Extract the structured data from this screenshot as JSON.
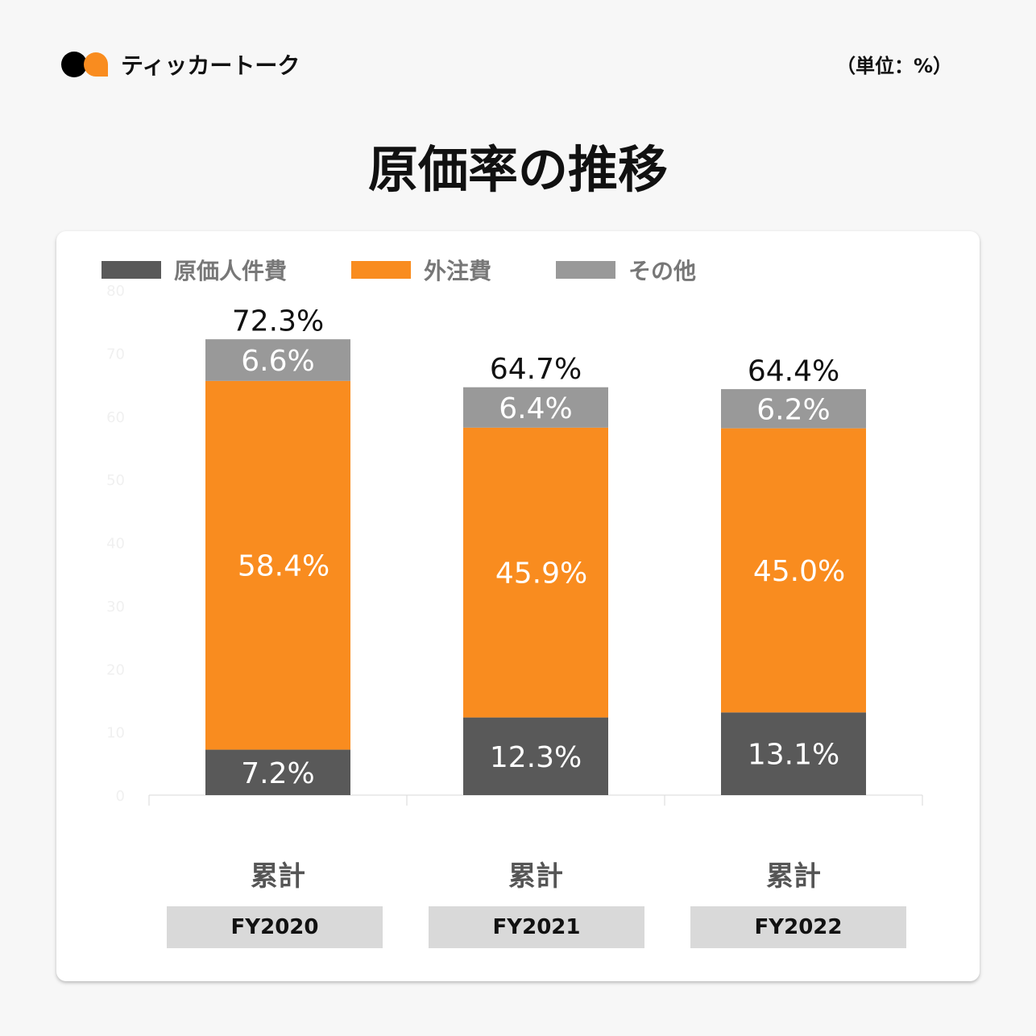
{
  "header": {
    "brand": "ティッカートーク",
    "unit": "（単位：%）",
    "title": "原価率の推移"
  },
  "colors": {
    "labor": "#595959",
    "outsourcing": "#f98c1f",
    "other": "#999999"
  },
  "chart_data": {
    "type": "bar",
    "stacked": true,
    "title": "原価率の推移",
    "ylabel": "%",
    "ylim": [
      0,
      80
    ],
    "yticks": [
      0,
      10,
      20,
      30,
      40,
      50,
      60,
      70,
      80
    ],
    "categories": [
      "FY2020",
      "FY2021",
      "FY2022"
    ],
    "category_sublabels": [
      "累計",
      "累計",
      "累計"
    ],
    "series": [
      {
        "name": "原価人件費",
        "values": [
          7.2,
          12.3,
          13.1
        ]
      },
      {
        "name": "外注費",
        "values": [
          58.4,
          45.9,
          45.0
        ]
      },
      {
        "name": "その他",
        "values": [
          6.6,
          6.4,
          6.2
        ]
      }
    ],
    "totals": [
      72.3,
      64.7,
      64.4
    ],
    "legend": "top-left"
  }
}
